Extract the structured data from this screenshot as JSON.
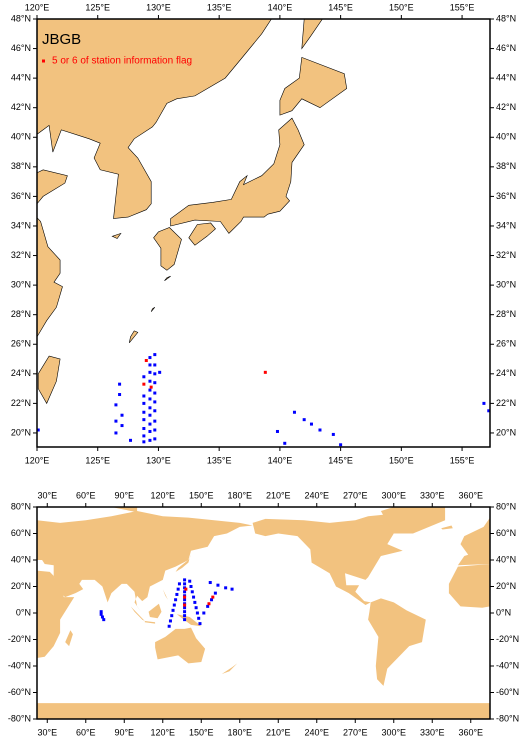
{
  "chart_data": [
    {
      "type": "map",
      "title": "JBGB",
      "xlim": [
        120,
        157.3
      ],
      "ylim": [
        19.05,
        48
      ],
      "xticks": [
        {
          "value": 120,
          "label": "120°E"
        },
        {
          "value": 125,
          "label": "125°E"
        },
        {
          "value": 130,
          "label": "130°E"
        },
        {
          "value": 135,
          "label": "135°E"
        },
        {
          "value": 140,
          "label": "140°E"
        },
        {
          "value": 145,
          "label": "145°E"
        },
        {
          "value": 150,
          "label": "150°E"
        },
        {
          "value": 155,
          "label": "155°E"
        }
      ],
      "yticks": [
        {
          "value": 20,
          "label": "20°N"
        },
        {
          "value": 22,
          "label": "22°N"
        },
        {
          "value": 24,
          "label": "24°N"
        },
        {
          "value": 26,
          "label": "26°N"
        },
        {
          "value": 28,
          "label": "28°N"
        },
        {
          "value": 30,
          "label": "30°N"
        },
        {
          "value": 32,
          "label": "32°N"
        },
        {
          "value": 34,
          "label": "34°N"
        },
        {
          "value": 36,
          "label": "36°N"
        },
        {
          "value": 38,
          "label": "38°N"
        },
        {
          "value": 40,
          "label": "40°N"
        },
        {
          "value": 42,
          "label": "42°N"
        },
        {
          "value": 44,
          "label": "44°N"
        },
        {
          "value": 46,
          "label": "46°N"
        },
        {
          "value": 48,
          "label": "48°N"
        }
      ],
      "series": [
        {
          "color": "#0000ff",
          "x": [
            128.8,
            128.8,
            128.8,
            128.8,
            128.8,
            128.8,
            128.8,
            128.8,
            129.3,
            129.3,
            129.3,
            129.3,
            129.3,
            129.3,
            129.3,
            129.3,
            129.3,
            129.3,
            129.3,
            129.7,
            129.7,
            129.7,
            129.7,
            129.7,
            129.7,
            129.7,
            129.7,
            129.7,
            129.7,
            130.1,
            126.8,
            126.8,
            126.5,
            126.5,
            126.5,
            127.0,
            127.0,
            127.7,
            120.1,
            141.2,
            142.0,
            142.6,
            143.3,
            144.4,
            139.8,
            140.4,
            145.0,
            156.8,
            157.2
          ],
          "y": [
            19.4,
            19.8,
            20.3,
            20.9,
            21.4,
            22.0,
            22.5,
            23.8,
            19.5,
            20.1,
            20.6,
            21.2,
            21.7,
            22.3,
            22.9,
            23.5,
            24.1,
            24.6,
            25.1,
            19.6,
            20.2,
            20.8,
            21.5,
            22.1,
            22.7,
            23.4,
            24.0,
            24.6,
            25.3,
            24.1,
            23.3,
            22.6,
            21.9,
            20.8,
            20.0,
            21.2,
            20.5,
            19.5,
            20.2,
            21.4,
            20.9,
            20.6,
            20.2,
            19.9,
            20.1,
            19.3,
            19.2,
            22.0,
            21.5
          ]
        },
        {
          "name": "5 or 6 of station information flag",
          "color": "#ff0000",
          "x": [
            129.0,
            128.8,
            129.4,
            138.8
          ],
          "y": [
            24.9,
            23.3,
            23.1,
            24.1
          ]
        }
      ]
    },
    {
      "type": "map",
      "xlim": [
        22,
        375
      ],
      "ylim": [
        -80,
        80
      ],
      "xticks": [
        {
          "value": 30,
          "label": "30°E"
        },
        {
          "value": 60,
          "label": "60°E"
        },
        {
          "value": 90,
          "label": "90°E"
        },
        {
          "value": 120,
          "label": "120°E"
        },
        {
          "value": 150,
          "label": "150°E"
        },
        {
          "value": 180,
          "label": "180°E"
        },
        {
          "value": 210,
          "label": "210°E"
        },
        {
          "value": 240,
          "label": "240°E"
        },
        {
          "value": 270,
          "label": "270°E"
        },
        {
          "value": 300,
          "label": "300°E"
        },
        {
          "value": 330,
          "label": "330°E"
        },
        {
          "value": 360,
          "label": "360°E"
        }
      ],
      "yticks": [
        {
          "value": -80,
          "label": "-80°N"
        },
        {
          "value": -60,
          "label": "-60°N"
        },
        {
          "value": -40,
          "label": "-40°N"
        },
        {
          "value": -20,
          "label": "-20°N"
        },
        {
          "value": 0,
          "label": "0°N"
        },
        {
          "value": 20,
          "label": "20°N"
        },
        {
          "value": 40,
          "label": "40°N"
        },
        {
          "value": 60,
          "label": "60°N"
        },
        {
          "value": 80,
          "label": "80°N"
        }
      ],
      "series": [
        {
          "color": "#0000ff",
          "x": [
            137,
            137,
            137,
            137,
            137,
            137,
            137,
            137,
            137,
            137,
            137,
            125,
            126,
            127,
            128,
            129,
            130,
            131,
            132,
            133,
            149,
            148,
            147,
            146,
            145,
            144,
            143,
            142,
            141,
            157,
            163,
            169,
            174,
            152,
            155,
            158,
            161,
            72,
            73,
            74,
            72
          ],
          "y": [
            -5,
            -2,
            1,
            4,
            7,
            10,
            13,
            16,
            19,
            22,
            25,
            -10,
            -6,
            -2,
            2,
            6,
            10,
            14,
            18,
            22,
            -8,
            -4,
            0,
            4,
            8,
            12,
            16,
            20,
            24,
            23,
            21,
            19,
            18,
            0,
            5,
            10,
            15,
            -1,
            -3,
            -5,
            1
          ]
        },
        {
          "color": "#ff0000",
          "x": [
            137,
            137,
            138,
            156,
            159
          ],
          "y": [
            6,
            12,
            18,
            7,
            12
          ]
        }
      ]
    }
  ]
}
